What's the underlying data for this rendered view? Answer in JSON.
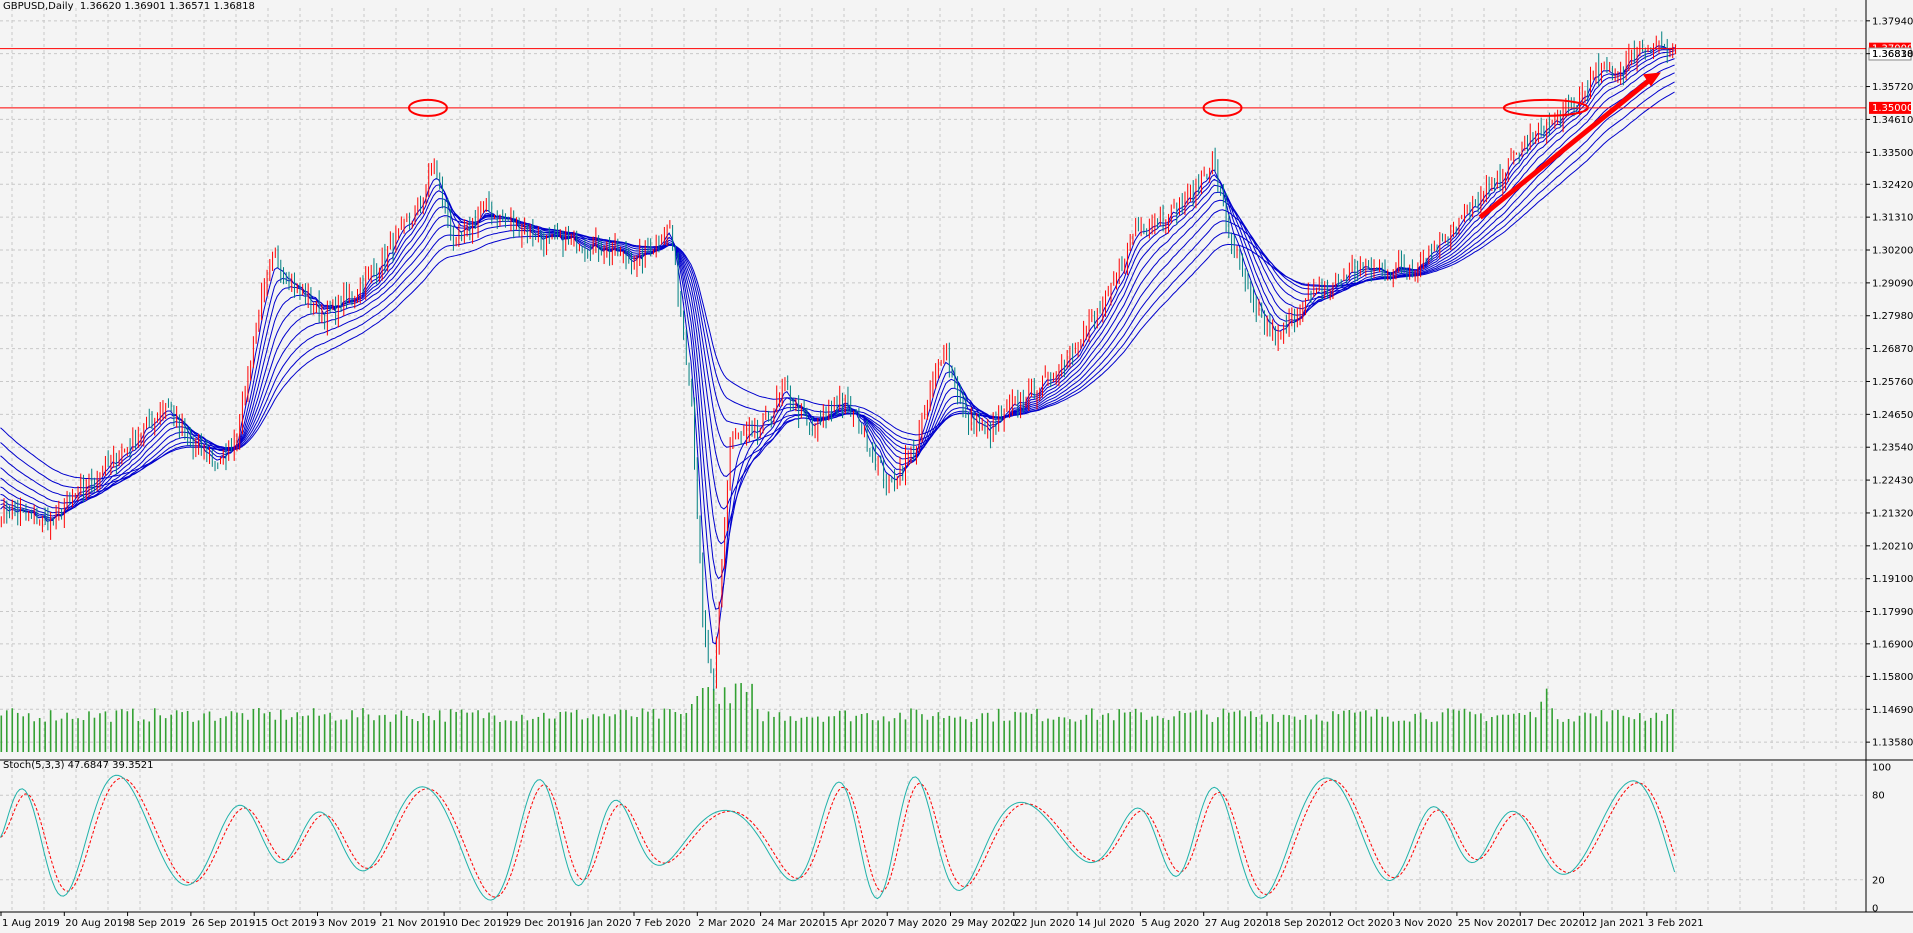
{
  "header": {
    "symbol": "GBPUSD,Daily",
    "ohlc": "1.36620 1.36901 1.36571 1.36818"
  },
  "stoch": {
    "label": "Stoch(5,3,3) 47.6847 39.3521",
    "levels": [
      "100",
      "80",
      "20",
      "0"
    ]
  },
  "colors": {
    "bull": "#ff0000",
    "bear": "#008080",
    "ema": "#0000cd",
    "volume": "#32a032",
    "grid": "#c8c8c8",
    "stoch_main": "#20b2aa",
    "stoch_signal": "#ff0000",
    "annotation": "#ff0000"
  },
  "chart_data": [
    {
      "type": "candlestick",
      "title": "GBPUSD,Daily",
      "y_ticks": [
        "1.37940",
        "1.36830",
        "1.35720",
        "1.34610",
        "1.33500",
        "1.32420",
        "1.31310",
        "1.30200",
        "1.29090",
        "1.27980",
        "1.26870",
        "1.25760",
        "1.24650",
        "1.23540",
        "1.22430",
        "1.21320",
        "1.20210",
        "1.19100",
        "1.17990",
        "1.16900",
        "1.15800",
        "1.14690",
        "1.13580"
      ],
      "x_ticks": [
        "1 Aug 2019",
        "20 Aug 2019",
        "8 Sep 2019",
        "26 Sep 2019",
        "15 Oct 2019",
        "3 Nov 2019",
        "21 Nov 2019",
        "10 Dec 2019",
        "29 Dec 2019",
        "16 Jan 2020",
        "7 Feb 2020",
        "2 Mar 2020",
        "24 Mar 2020",
        "15 Apr 2020",
        "7 May 2020",
        "29 May 2020",
        "22 Jun 2020",
        "14 Jul 2020",
        "5 Aug 2020",
        "27 Aug 2020",
        "18 Sep 2020",
        "12 Oct 2020",
        "3 Nov 2020",
        "25 Nov 2020",
        "17 Dec 2020",
        "12 Jan 2021",
        "3 Feb 2021"
      ],
      "ylim": [
        1.1358,
        1.3794
      ],
      "price_path": [
        [
          0,
          1.215
        ],
        [
          18,
          1.21
        ],
        [
          34,
          1.225
        ],
        [
          46,
          1.235
        ],
        [
          60,
          1.25
        ],
        [
          70,
          1.235
        ],
        [
          80,
          1.23
        ],
        [
          86,
          1.24
        ],
        [
          94,
          1.282
        ],
        [
          100,
          1.3
        ],
        [
          108,
          1.288
        ],
        [
          118,
          1.28
        ],
        [
          130,
          1.288
        ],
        [
          140,
          1.3
        ],
        [
          152,
          1.316
        ],
        [
          158,
          1.33
        ],
        [
          166,
          1.303
        ],
        [
          176,
          1.316
        ],
        [
          188,
          1.31
        ],
        [
          200,
          1.305
        ],
        [
          210,
          1.305
        ],
        [
          222,
          1.302
        ],
        [
          232,
          1.298
        ],
        [
          244,
          1.31
        ],
        [
          252,
          1.252
        ],
        [
          256,
          1.175
        ],
        [
          260,
          1.152
        ],
        [
          266,
          1.238
        ],
        [
          276,
          1.24
        ],
        [
          286,
          1.255
        ],
        [
          296,
          1.24
        ],
        [
          306,
          1.252
        ],
        [
          314,
          1.242
        ],
        [
          324,
          1.222
        ],
        [
          334,
          1.236
        ],
        [
          344,
          1.27
        ],
        [
          352,
          1.245
        ],
        [
          360,
          1.24
        ],
        [
          370,
          1.25
        ],
        [
          382,
          1.258
        ],
        [
          392,
          1.27
        ],
        [
          404,
          1.285
        ],
        [
          414,
          1.31
        ],
        [
          424,
          1.313
        ],
        [
          434,
          1.32
        ],
        [
          442,
          1.332
        ],
        [
          448,
          1.308
        ],
        [
          458,
          1.28
        ],
        [
          466,
          1.272
        ],
        [
          476,
          1.285
        ],
        [
          486,
          1.29
        ],
        [
          494,
          1.296
        ],
        [
          506,
          1.295
        ],
        [
          516,
          1.297
        ],
        [
          530,
          1.31
        ],
        [
          544,
          1.323
        ],
        [
          556,
          1.338
        ],
        [
          566,
          1.345
        ],
        [
          574,
          1.35
        ],
        [
          582,
          1.362
        ],
        [
          590,
          1.362
        ],
        [
          598,
          1.37
        ],
        [
          604,
          1.372
        ],
        [
          610,
          1.3682
        ]
      ],
      "annotations": {
        "levels": [
          {
            "value": 1.37,
            "label": "1.37000"
          },
          {
            "value": 1.35,
            "label": "1.35000"
          }
        ],
        "current_price_label": "1.36818",
        "circled_highs": [
          156,
          446,
          564
        ],
        "trend_arrow": {
          "from": [
            540,
            1.313
          ],
          "to": [
            606,
            1.362
          ]
        }
      }
    },
    {
      "type": "line",
      "title": "Stoch(5,3,3)",
      "ylim": [
        0,
        100
      ],
      "series": [
        {
          "name": "Main",
          "current": 47.6847
        },
        {
          "name": "Signal",
          "current": 39.3521
        }
      ]
    }
  ]
}
